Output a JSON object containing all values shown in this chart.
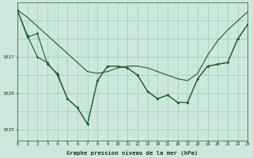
{
  "background_color": "#cce8dc",
  "plot_bg_color": "#cce8dc",
  "grid_color": "#99ccb3",
  "line_color": "#1a5c2a",
  "title": "Graphe pression niveau de la mer (hPa)",
  "xlim": [
    0,
    23
  ],
  "ylim": [
    1024.7,
    1028.5
  ],
  "yticks": [
    1025,
    1026,
    1027
  ],
  "xticks": [
    0,
    1,
    2,
    3,
    4,
    5,
    6,
    7,
    8,
    9,
    10,
    11,
    12,
    13,
    14,
    15,
    16,
    17,
    18,
    19,
    20,
    21,
    22,
    23
  ],
  "series1_x": [
    0,
    1,
    2,
    3,
    4,
    5,
    6,
    7,
    8,
    9,
    10,
    11,
    12,
    13,
    14,
    15,
    16,
    17,
    18,
    19,
    20,
    21,
    22,
    23
  ],
  "series1_y": [
    1028.3,
    1027.6,
    1027.0,
    1026.85,
    1026.5,
    1025.85,
    1025.6,
    1025.15,
    1026.35,
    1026.75,
    1026.75,
    1026.7,
    1026.5,
    1026.05,
    1025.85,
    1025.95,
    1025.75,
    1025.75,
    1026.4,
    1026.75,
    1026.8,
    1026.85,
    1027.5,
    1027.9
  ],
  "series2_x": [
    0,
    1,
    2,
    3,
    4,
    5,
    6,
    7,
    8,
    9,
    10,
    11,
    12,
    13,
    14,
    15,
    16,
    17,
    18,
    19,
    20,
    21,
    22,
    23
  ],
  "series2_y": [
    1028.3,
    1028.1,
    1027.85,
    1027.6,
    1027.35,
    1027.1,
    1026.85,
    1026.6,
    1026.55,
    1026.6,
    1026.7,
    1026.75,
    1026.75,
    1026.7,
    1026.6,
    1026.5,
    1026.4,
    1026.35,
    1026.55,
    1027.05,
    1027.45,
    1027.75,
    1028.0,
    1028.25
  ],
  "series3_x": [
    0,
    1,
    2,
    3,
    4,
    5,
    6,
    7,
    8,
    9,
    10,
    11,
    12,
    13,
    14,
    15,
    16,
    17,
    18,
    19,
    20,
    21,
    22,
    23
  ],
  "series3_y": [
    1028.3,
    1027.55,
    1027.65,
    1026.8,
    1026.55,
    1025.85,
    1025.6,
    1025.15,
    1026.35,
    1026.75,
    1026.75,
    1026.7,
    1026.5,
    1026.05,
    1025.85,
    1025.95,
    1025.75,
    1025.75,
    1026.4,
    1026.75,
    1026.8,
    1026.85,
    1027.5,
    1027.9
  ]
}
